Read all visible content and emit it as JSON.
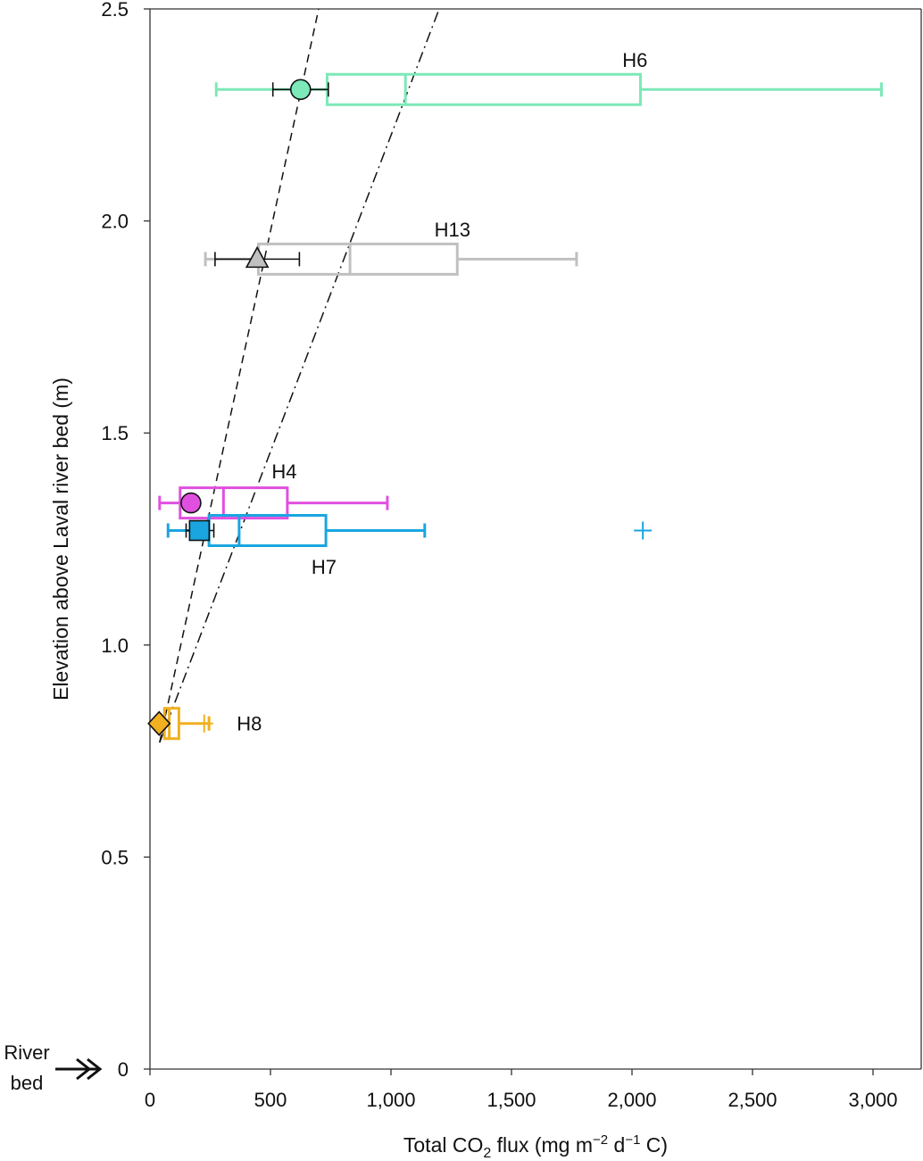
{
  "chart_data": {
    "type": "boxplot",
    "xlabel": {
      "main": "Total CO",
      "sub": "2",
      "rest": " flux (mg m",
      "sup1": "−2",
      "mid": " d",
      "sup2": "−1",
      "end": " C)"
    },
    "ylabel": "Elevation above Laval river bed (m)",
    "xlim": [
      0,
      3200
    ],
    "ylim": [
      0,
      2.5
    ],
    "x_ticks": [
      0,
      500,
      1000,
      1500,
      2000,
      2500,
      3000
    ],
    "x_tick_labels": [
      "0",
      "500",
      "1,000",
      "1,500",
      "2,000",
      "2,500",
      "3,000"
    ],
    "y_ticks": [
      0,
      0.5,
      1.0,
      1.5,
      2.0,
      2.5
    ],
    "y_tick_labels": [
      "0",
      "0.5",
      "1.0",
      "1.5",
      "2.0",
      "2.5"
    ],
    "river_bed_label": [
      "River",
      "bed"
    ],
    "sites": [
      {
        "name": "H6",
        "elevation": 2.31,
        "color": "#7de8b8",
        "marker": "circle",
        "box": {
          "whisker_low": 275,
          "q1": 735,
          "median": 1060,
          "q3": 2035,
          "whisker_high": 3035
        },
        "mean": 625,
        "mean_err": [
          510,
          740
        ],
        "outliers": [],
        "label_at": [
          1960,
          2.38
        ]
      },
      {
        "name": "H13",
        "elevation": 1.91,
        "color": "#c0c0c0",
        "marker": "triangle",
        "box": {
          "whisker_low": 230,
          "q1": 450,
          "median": 830,
          "q3": 1275,
          "whisker_high": 1770
        },
        "mean": 445,
        "mean_err": [
          270,
          620
        ],
        "outliers": [],
        "label_at": [
          1180,
          1.98
        ]
      },
      {
        "name": "H4",
        "elevation": 1.335,
        "color": "#e050e0",
        "marker": "circle",
        "box": {
          "whisker_low": 40,
          "q1": 125,
          "median": 305,
          "q3": 570,
          "whisker_high": 985
        },
        "mean": 170,
        "mean_err": [
          140,
          200
        ],
        "outliers": [],
        "label_at": [
          505,
          1.41
        ]
      },
      {
        "name": "H7",
        "elevation": 1.27,
        "color": "#1aa5e0",
        "marker": "square",
        "box": {
          "whisker_low": 75,
          "q1": 245,
          "median": 370,
          "q3": 730,
          "whisker_high": 1140
        },
        "mean": 205,
        "mean_err": [
          150,
          265
        ],
        "outliers": [
          2045
        ],
        "label_at": [
          670,
          1.185
        ]
      },
      {
        "name": "H8",
        "elevation": 0.815,
        "color": "#f0b020",
        "marker": "diamond",
        "box": {
          "whisker_low": 60,
          "q1": 60,
          "median": 80,
          "q3": 120,
          "whisker_high": 245
        },
        "mean": 38,
        "mean_err": [
          38,
          38
        ],
        "outliers": [
          225
        ],
        "label_at": [
          360,
          0.815
        ]
      }
    ],
    "fit_lines": [
      {
        "style": "dashed",
        "from": [
          40,
          0.77
        ],
        "to": [
          700,
          2.5
        ]
      },
      {
        "style": "dashdot",
        "from": [
          40,
          0.77
        ],
        "to": [
          1200,
          2.5
        ]
      }
    ]
  }
}
